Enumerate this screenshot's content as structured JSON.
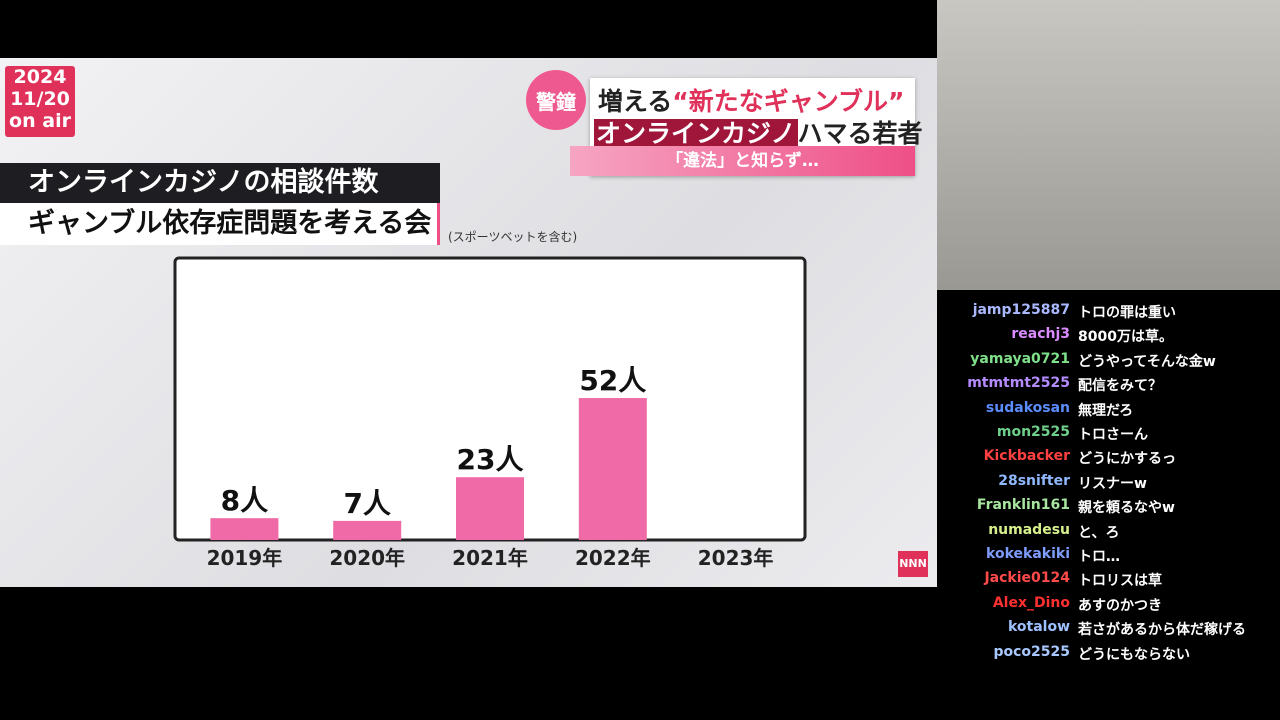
{
  "broadcast": {
    "date": {
      "year": "2024",
      "day": "11/20",
      "onair": "on air"
    },
    "headline": {
      "badge": "警鐘",
      "line1_lead": "増える",
      "line1_quote": "“新たなギャンブル”",
      "line2_highlight": "オンラインカジノ",
      "line2_rest": "ハマる若者",
      "line3": "「違法」と知らず…"
    },
    "chart_title": "オンラインカジノの相談件数",
    "source": "ギャンブル依存症問題を考える会",
    "note": "(スポーツベットを含む)",
    "chart": {
      "type": "bar",
      "categories": [
        "2019年",
        "2020年",
        "2021年",
        "2022年",
        "2023年"
      ],
      "values": [
        8,
        7,
        23,
        52,
        null
      ],
      "value_labels": [
        "8人",
        "7人",
        "23人",
        "52人",
        null
      ],
      "color": "#ef6aa6"
    },
    "logo": "NNN"
  },
  "chat": [
    {
      "user": "jamp125887",
      "color": "#a9b8ff",
      "message": "トロの罪は重い"
    },
    {
      "user": "reachj3",
      "color": "#d98cff",
      "message": "8000万は草。"
    },
    {
      "user": "yamaya0721",
      "color": "#7fe08a",
      "message": "どうやってそんな金w"
    },
    {
      "user": "mtmtmt2525",
      "color": "#b58cff",
      "message": "配信をみて？"
    },
    {
      "user": "sudakosan",
      "color": "#5b8cff",
      "message": "無理だろ"
    },
    {
      "user": "mon2525",
      "color": "#6fd08c",
      "message": "トロさーん"
    },
    {
      "user": "Kickbacker",
      "color": "#ff4040",
      "message": "どうにかするっ"
    },
    {
      "user": "28snifter",
      "color": "#8fb8ff",
      "message": "リスナーw"
    },
    {
      "user": "Franklin161",
      "color": "#a8e6a0",
      "message": "親を頼るなやw"
    },
    {
      "user": "numadesu",
      "color": "#d8f08c",
      "message": "と、ろ"
    },
    {
      "user": "kokekakiki",
      "color": "#7f9cff",
      "message": "トロ…"
    },
    {
      "user": "Jackie0124",
      "color": "#ff4a4a",
      "message": "トロリスは草"
    },
    {
      "user": "Alex_Dino",
      "color": "#ff3030",
      "message": "あすのかつき"
    },
    {
      "user": "kotalow",
      "color": "#9fc0ff",
      "message": "若さがあるから体だ稼げる"
    },
    {
      "user": "poco2525",
      "color": "#a8c8ff",
      "message": "どうにもならない"
    }
  ]
}
